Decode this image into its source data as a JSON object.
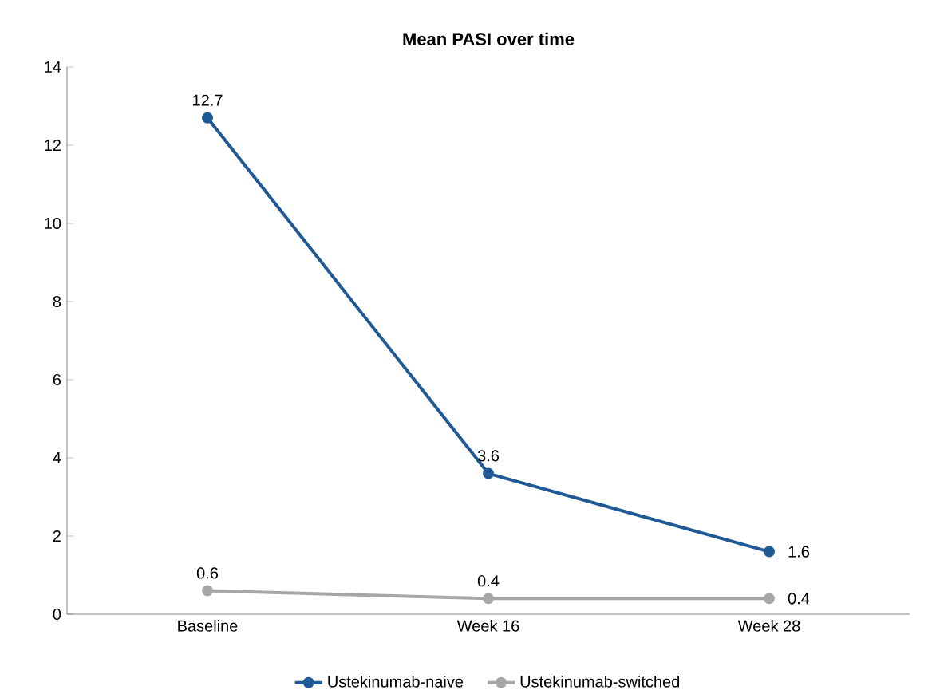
{
  "chart_data": {
    "type": "line",
    "title": "Mean PASI over time",
    "categories": [
      "Baseline",
      "Week 16",
      "Week 28"
    ],
    "series": [
      {
        "name": "Ustekinumab-naive",
        "color": "#1f5a96",
        "values": [
          12.7,
          3.6,
          1.6
        ]
      },
      {
        "name": "Ustekinumab-switched",
        "color": "#a6a6a6",
        "values": [
          0.6,
          0.4,
          0.4
        ]
      }
    ],
    "ylim": [
      0,
      14
    ],
    "yticks": [
      0,
      2,
      4,
      6,
      8,
      10,
      12,
      14
    ],
    "data_labels": true,
    "marker": "circle",
    "legend": "bottom",
    "grid": false
  }
}
